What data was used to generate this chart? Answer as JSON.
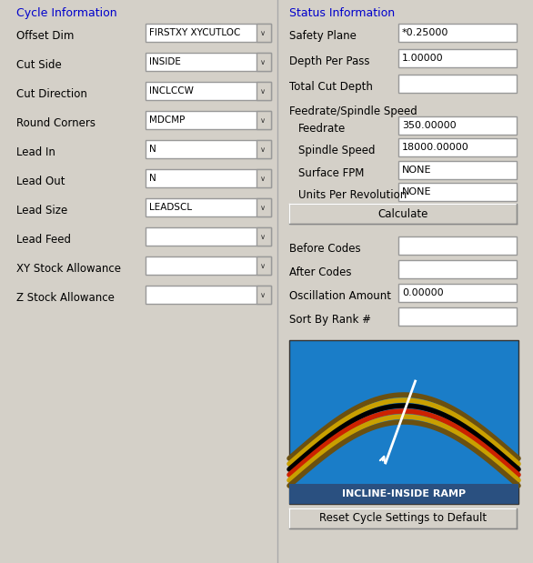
{
  "bg_color": "#d4d0c8",
  "title_color": "#0000cc",
  "label_color": "#000000",
  "section_header_color": "#0000cc",
  "input_bg": "#ffffff",
  "input_border": "#999999",
  "button_bg": "#d4d0c8",
  "button_border": "#999999",
  "left_section_title": "Cycle Information",
  "right_section_title": "Status Information",
  "left_labels": [
    "Offset Dim",
    "Cut Side",
    "Cut Direction",
    "Round Corners",
    "Lead In",
    "Lead Out",
    "Lead Size",
    "Lead Feed",
    "XY Stock Allowance",
    "Z Stock Allowance"
  ],
  "left_values": [
    "FIRSTXY XYCUTLOC",
    "INSIDE",
    "INCLCCW",
    "MDCMP",
    "N",
    "N",
    "LEADSCL",
    "",
    "",
    ""
  ],
  "left_has_dropdown": [
    true,
    true,
    true,
    true,
    true,
    true,
    true,
    true,
    true,
    true
  ],
  "right_labels_top": [
    "Safety Plane",
    "Depth Per Pass",
    "Total Cut Depth"
  ],
  "right_values_top": [
    "*0.25000",
    "1.00000",
    ""
  ],
  "feedrate_section": "Feedrate/Spindle Speed",
  "feedrate_labels": [
    "Feedrate",
    "Spindle Speed",
    "Surface FPM",
    "Units Per Revolution"
  ],
  "feedrate_values": [
    "350.00000",
    "18000.00000",
    "NONE",
    "NONE"
  ],
  "calculate_button": "Calculate",
  "bottom_labels": [
    "Before Codes",
    "After Codes",
    "Oscillation Amount",
    "Sort By Rank #"
  ],
  "bottom_values": [
    "",
    "",
    "0.00000",
    ""
  ],
  "reset_button": "Reset Cycle Settings to Default",
  "image_label": "INCLINE-INSIDE RAMP",
  "image_bg": "#1a7dc8",
  "image_stripe_colors": [
    "#8b6914",
    "#d4a800",
    "#000000",
    "#cc0000",
    "#d4a800",
    "#8b6914"
  ],
  "figsize": [
    5.86,
    6.19
  ],
  "dpi": 100
}
